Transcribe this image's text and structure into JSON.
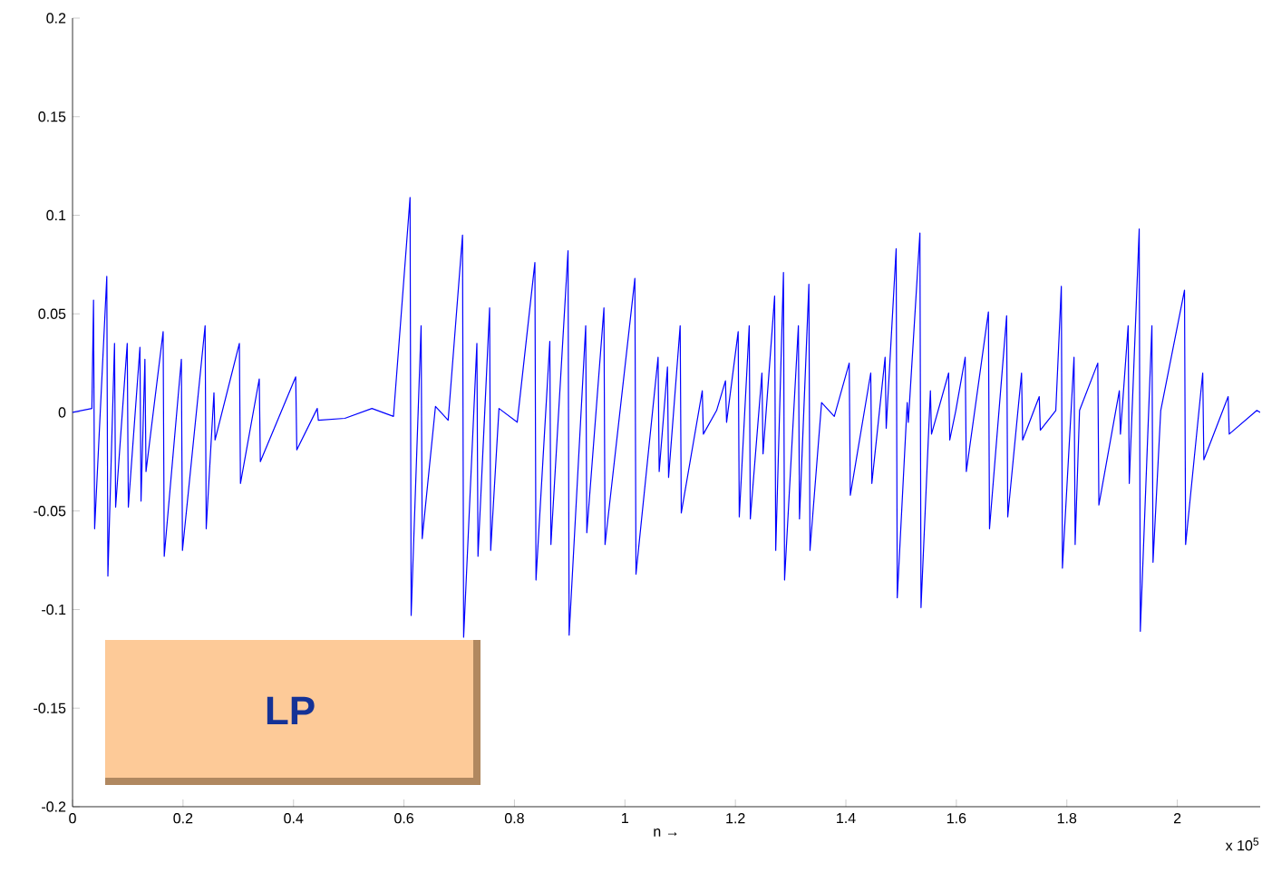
{
  "chart_data": {
    "type": "line",
    "xlabel": "n →",
    "annotations": [
      "x 10$^{5}$",
      "LP"
    ],
    "xlim": [
      0,
      2.15
    ],
    "ylim": [
      -0.2,
      0.2
    ],
    "xticks": [
      0,
      0.2,
      0.4,
      0.6,
      0.8,
      1,
      1.2,
      1.4,
      1.6,
      1.8,
      2
    ],
    "yticks": [
      -0.2,
      -0.15,
      -0.1,
      -0.05,
      0,
      0.05,
      0.1,
      0.15,
      0.2
    ],
    "grid": false,
    "marker": "none",
    "line_style": "solid",
    "series": [
      {
        "color": "#0000ff",
        "x": [
          0,
          0.035,
          0.038,
          0.04,
          0.062,
          0.064,
          0.076,
          0.078,
          0.099,
          0.101,
          0.122,
          0.124,
          0.131,
          0.133,
          0.164,
          0.166,
          0.197,
          0.199,
          0.24,
          0.242,
          0.256,
          0.258,
          0.302,
          0.304,
          0.338,
          0.34,
          0.404,
          0.406,
          0.443,
          0.445,
          0.493,
          0.542,
          0.581,
          0.611,
          0.613,
          0.631,
          0.633,
          0.657,
          0.68,
          0.706,
          0.708,
          0.732,
          0.734,
          0.755,
          0.757,
          0.772,
          0.805,
          0.837,
          0.839,
          0.864,
          0.866,
          0.897,
          0.899,
          0.929,
          0.931,
          0.962,
          0.964,
          1.018,
          1.02,
          1.06,
          1.062,
          1.077,
          1.079,
          1.1,
          1.102,
          1.14,
          1.142,
          1.166,
          1.182,
          1.184,
          1.205,
          1.207,
          1.225,
          1.227,
          1.248,
          1.25,
          1.271,
          1.273,
          1.287,
          1.289,
          1.314,
          1.316,
          1.333,
          1.335,
          1.356,
          1.379,
          1.406,
          1.408,
          1.445,
          1.447,
          1.471,
          1.473,
          1.491,
          1.493,
          1.511,
          1.513,
          1.534,
          1.536,
          1.553,
          1.555,
          1.586,
          1.588,
          1.599,
          1.616,
          1.618,
          1.658,
          1.66,
          1.691,
          1.693,
          1.718,
          1.72,
          1.75,
          1.752,
          1.78,
          1.79,
          1.792,
          1.813,
          1.815,
          1.823,
          1.856,
          1.858,
          1.895,
          1.897,
          1.911,
          1.913,
          1.931,
          1.933,
          1.954,
          1.956,
          1.97,
          2.013,
          2.015,
          2.046,
          2.048,
          2.092,
          2.094,
          2.144,
          2.15
        ],
        "values": [
          0,
          0.002,
          0.057,
          -0.059,
          0.069,
          -0.083,
          0.035,
          -0.048,
          0.035,
          -0.048,
          0.033,
          -0.045,
          0.027,
          -0.03,
          0.041,
          -0.073,
          0.027,
          -0.07,
          0.044,
          -0.059,
          0.01,
          -0.014,
          0.035,
          -0.036,
          0.017,
          -0.025,
          0.018,
          -0.019,
          0.002,
          -0.004,
          -0.003,
          0.002,
          -0.002,
          0.109,
          -0.103,
          0.044,
          -0.064,
          0.003,
          -0.004,
          0.09,
          -0.114,
          0.035,
          -0.073,
          0.053,
          -0.07,
          0.002,
          -0.005,
          0.076,
          -0.085,
          0.036,
          -0.067,
          0.082,
          -0.113,
          0.044,
          -0.061,
          0.053,
          -0.067,
          0.068,
          -0.082,
          0.028,
          -0.03,
          0.023,
          -0.033,
          0.044,
          -0.051,
          0.011,
          -0.011,
          0.001,
          0.016,
          -0.005,
          0.041,
          -0.053,
          0.044,
          -0.054,
          0.02,
          -0.021,
          0.059,
          -0.07,
          0.071,
          -0.085,
          0.044,
          -0.054,
          0.065,
          -0.07,
          0.005,
          -0.002,
          0.025,
          -0.042,
          0.02,
          -0.036,
          0.028,
          -0.008,
          0.083,
          -0.094,
          0.005,
          -0.005,
          0.091,
          -0.099,
          0.011,
          -0.011,
          0.02,
          -0.014,
          0.001,
          0.028,
          -0.03,
          0.051,
          -0.059,
          0.049,
          -0.053,
          0.02,
          -0.014,
          0.008,
          -0.009,
          0.001,
          0.064,
          -0.079,
          0.028,
          -0.067,
          0.001,
          0.025,
          -0.047,
          0.011,
          -0.011,
          0.044,
          -0.036,
          0.093,
          -0.111,
          0.044,
          -0.076,
          0.001,
          0.062,
          -0.067,
          0.02,
          -0.024,
          0.008,
          -0.011,
          0.001,
          0
        ]
      }
    ]
  }
}
